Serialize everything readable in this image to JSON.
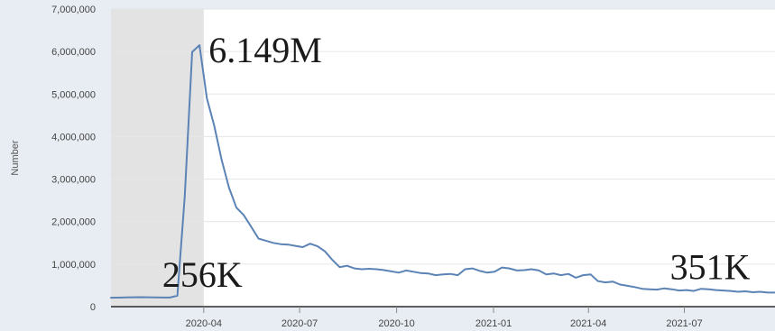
{
  "chart_data": {
    "type": "line",
    "ylabel": "Number",
    "ylim": [
      0,
      7000000
    ],
    "yticks": [
      {
        "value": 0,
        "label": "0"
      },
      {
        "value": 1000000,
        "label": "1,000,000"
      },
      {
        "value": 2000000,
        "label": "2,000,000"
      },
      {
        "value": 3000000,
        "label": "3,000,000"
      },
      {
        "value": 4000000,
        "label": "4,000,000"
      },
      {
        "value": 5000000,
        "label": "5,000,000"
      },
      {
        "value": 6000000,
        "label": "6,000,000"
      },
      {
        "value": 7000000,
        "label": "7,000,000"
      }
    ],
    "xlim": [
      "2020-01-04",
      "2021-09-25"
    ],
    "xticks": [
      {
        "value": "2020-04-01",
        "label": "2020-04"
      },
      {
        "value": "2020-07-01",
        "label": "2020-07"
      },
      {
        "value": "2020-10-01",
        "label": "2020-10"
      },
      {
        "value": "2021-01-01",
        "label": "2021-01"
      },
      {
        "value": "2021-04-01",
        "label": "2021-04"
      },
      {
        "value": "2021-07-01",
        "label": "2021-07"
      }
    ],
    "shaded_region": [
      "2020-01-04",
      "2020-04-01"
    ],
    "grid": true,
    "series": [
      {
        "color": "#5b83b5",
        "points": [
          [
            "2020-01-04",
            210000
          ],
          [
            "2020-01-11",
            212000
          ],
          [
            "2020-01-18",
            218000
          ],
          [
            "2020-01-25",
            220000
          ],
          [
            "2020-02-01",
            222000
          ],
          [
            "2020-02-08",
            220000
          ],
          [
            "2020-02-15",
            218000
          ],
          [
            "2020-02-22",
            215000
          ],
          [
            "2020-02-29",
            215000
          ],
          [
            "2020-03-07",
            256000
          ],
          [
            "2020-03-14",
            2600000
          ],
          [
            "2020-03-21",
            5990000
          ],
          [
            "2020-03-28",
            6149000
          ],
          [
            "2020-04-04",
            4900000
          ],
          [
            "2020-04-11",
            4250000
          ],
          [
            "2020-04-18",
            3450000
          ],
          [
            "2020-04-25",
            2800000
          ],
          [
            "2020-05-02",
            2330000
          ],
          [
            "2020-05-09",
            2150000
          ],
          [
            "2020-05-16",
            1880000
          ],
          [
            "2020-05-23",
            1600000
          ],
          [
            "2020-05-30",
            1550000
          ],
          [
            "2020-06-06",
            1500000
          ],
          [
            "2020-06-13",
            1470000
          ],
          [
            "2020-06-20",
            1460000
          ],
          [
            "2020-06-27",
            1430000
          ],
          [
            "2020-07-04",
            1400000
          ],
          [
            "2020-07-11",
            1480000
          ],
          [
            "2020-07-18",
            1420000
          ],
          [
            "2020-07-25",
            1300000
          ],
          [
            "2020-08-01",
            1100000
          ],
          [
            "2020-08-08",
            930000
          ],
          [
            "2020-08-15",
            960000
          ],
          [
            "2020-08-22",
            900000
          ],
          [
            "2020-08-29",
            880000
          ],
          [
            "2020-09-05",
            890000
          ],
          [
            "2020-09-12",
            880000
          ],
          [
            "2020-09-19",
            860000
          ],
          [
            "2020-09-26",
            830000
          ],
          [
            "2020-10-03",
            800000
          ],
          [
            "2020-10-10",
            850000
          ],
          [
            "2020-10-17",
            820000
          ],
          [
            "2020-10-24",
            790000
          ],
          [
            "2020-10-31",
            780000
          ],
          [
            "2020-11-07",
            740000
          ],
          [
            "2020-11-14",
            760000
          ],
          [
            "2020-11-21",
            770000
          ],
          [
            "2020-11-28",
            740000
          ],
          [
            "2020-12-05",
            880000
          ],
          [
            "2020-12-12",
            900000
          ],
          [
            "2020-12-19",
            840000
          ],
          [
            "2020-12-26",
            800000
          ],
          [
            "2021-01-02",
            820000
          ],
          [
            "2021-01-09",
            920000
          ],
          [
            "2021-01-16",
            900000
          ],
          [
            "2021-01-23",
            850000
          ],
          [
            "2021-01-30",
            860000
          ],
          [
            "2021-02-06",
            880000
          ],
          [
            "2021-02-13",
            850000
          ],
          [
            "2021-02-20",
            760000
          ],
          [
            "2021-02-27",
            780000
          ],
          [
            "2021-03-06",
            740000
          ],
          [
            "2021-03-13",
            770000
          ],
          [
            "2021-03-20",
            680000
          ],
          [
            "2021-03-27",
            740000
          ],
          [
            "2021-04-03",
            760000
          ],
          [
            "2021-04-10",
            600000
          ],
          [
            "2021-04-17",
            570000
          ],
          [
            "2021-04-24",
            590000
          ],
          [
            "2021-05-01",
            520000
          ],
          [
            "2021-05-08",
            490000
          ],
          [
            "2021-05-15",
            460000
          ],
          [
            "2021-05-22",
            420000
          ],
          [
            "2021-05-29",
            410000
          ],
          [
            "2021-06-05",
            400000
          ],
          [
            "2021-06-12",
            430000
          ],
          [
            "2021-06-19",
            410000
          ],
          [
            "2021-06-26",
            380000
          ],
          [
            "2021-07-03",
            390000
          ],
          [
            "2021-07-10",
            370000
          ],
          [
            "2021-07-17",
            420000
          ],
          [
            "2021-07-24",
            410000
          ],
          [
            "2021-07-31",
            390000
          ],
          [
            "2021-08-07",
            380000
          ],
          [
            "2021-08-14",
            370000
          ],
          [
            "2021-08-21",
            350000
          ],
          [
            "2021-08-28",
            360000
          ],
          [
            "2021-09-04",
            340000
          ],
          [
            "2021-09-11",
            351000
          ],
          [
            "2021-09-18",
            330000
          ],
          [
            "2021-09-25",
            330000
          ]
        ]
      }
    ],
    "annotations": [
      {
        "text": "6.149M",
        "at": [
          "2020-04-04",
          6149000
        ]
      },
      {
        "text": "256K",
        "at": [
          "2020-03-03",
          256000
        ]
      },
      {
        "text": "351K",
        "at": [
          "2021-09-11",
          351000
        ]
      }
    ]
  }
}
